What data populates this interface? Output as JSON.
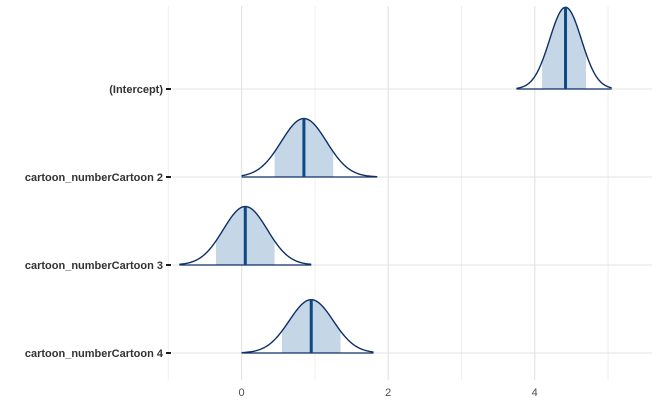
{
  "chart_data": {
    "type": "area",
    "subtype": "posterior-density-ridges",
    "title": "",
    "xlabel": "",
    "ylabel": "",
    "xlim": [
      -0.95,
      5.6
    ],
    "x_ticks": [
      0,
      2,
      4
    ],
    "x_tick_labels": [
      "0",
      "2",
      "4"
    ],
    "x_minor_ticks": [
      -1,
      1,
      3,
      5
    ],
    "grid": true,
    "legend": "none",
    "colors": {
      "outline": "#0d2f66",
      "fill_inner": "#c5d7e7",
      "median_line": "#0b4a84",
      "grid_major": "#e3e3e3",
      "grid_minor": "#efefef",
      "tick_mark": "#1a1a1a"
    },
    "parameters": [
      {
        "name": "(Intercept)",
        "median": 4.42,
        "inner": [
          4.1,
          4.7
        ],
        "outer": [
          3.75,
          5.05
        ],
        "peak_height": 0.95
      },
      {
        "name": "cartoon_numberCartoon 2",
        "median": 0.85,
        "inner": [
          0.45,
          1.25
        ],
        "outer": [
          0.0,
          1.85
        ],
        "peak_height": 0.68
      },
      {
        "name": "cartoon_numberCartoon 3",
        "median": 0.05,
        "inner": [
          -0.35,
          0.45
        ],
        "outer": [
          -0.85,
          0.95
        ],
        "peak_height": 0.68
      },
      {
        "name": "cartoon_numberCartoon 4",
        "median": 0.95,
        "inner": [
          0.55,
          1.35
        ],
        "outer": [
          0.0,
          1.8
        ],
        "peak_height": 0.62
      }
    ]
  }
}
